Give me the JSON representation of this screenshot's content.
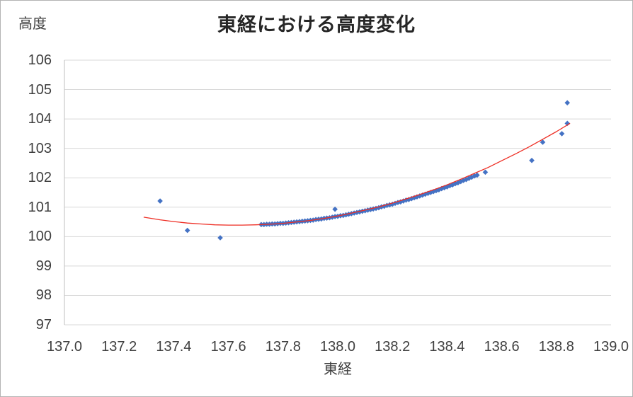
{
  "chart": {
    "title": "東経における高度変化",
    "y_axis_label": "高度",
    "x_axis_label": "東経"
  },
  "chart_data": {
    "type": "scatter",
    "title": "東経における高度変化",
    "xlabel": "東経",
    "ylabel": "高度",
    "xlim": [
      137.0,
      139.0
    ],
    "ylim": [
      97,
      106
    ],
    "x_ticks": [
      "137.0",
      "137.2",
      "137.4",
      "137.6",
      "137.8",
      "138.0",
      "138.2",
      "138.4",
      "138.6",
      "138.8",
      "139.0"
    ],
    "y_ticks": [
      "106",
      "105",
      "104",
      "103",
      "102",
      "101",
      "100",
      "99",
      "98",
      "97"
    ],
    "grid": "horizontal",
    "legend": "none",
    "colors": {
      "marker": "#4472C4",
      "trendline": "#EE2E24",
      "gridline": "#D9D9D9",
      "axis_line": "#BFBFBF",
      "axis_text": "#3F3F3F",
      "title_text": "#262626"
    },
    "series": [
      {
        "name": "高度",
        "type": "scatter",
        "marker": "diamond",
        "color": "#4472C4",
        "points": [
          [
            137.35,
            101.21
          ],
          [
            137.45,
            100.21
          ],
          [
            137.57,
            99.96
          ],
          [
            137.72,
            100.41
          ],
          [
            137.73,
            100.41
          ],
          [
            137.74,
            100.42
          ],
          [
            137.75,
            100.42
          ],
          [
            137.76,
            100.43
          ],
          [
            137.77,
            100.43
          ],
          [
            137.78,
            100.44
          ],
          [
            137.79,
            100.45
          ],
          [
            137.8,
            100.45
          ],
          [
            137.81,
            100.46
          ],
          [
            137.82,
            100.47
          ],
          [
            137.83,
            100.48
          ],
          [
            137.84,
            100.49
          ],
          [
            137.85,
            100.5
          ],
          [
            137.86,
            100.51
          ],
          [
            137.87,
            100.52
          ],
          [
            137.88,
            100.53
          ],
          [
            137.89,
            100.54
          ],
          [
            137.9,
            100.55
          ],
          [
            137.91,
            100.56
          ],
          [
            137.92,
            100.58
          ],
          [
            137.93,
            100.59
          ],
          [
            137.94,
            100.6
          ],
          [
            137.95,
            100.62
          ],
          [
            137.96,
            100.63
          ],
          [
            137.97,
            100.64
          ],
          [
            137.98,
            100.66
          ],
          [
            137.99,
            100.68
          ],
          [
            137.99,
            100.93
          ],
          [
            138.0,
            100.69
          ],
          [
            138.01,
            100.71
          ],
          [
            138.02,
            100.72
          ],
          [
            138.03,
            100.74
          ],
          [
            138.04,
            100.76
          ],
          [
            138.05,
            100.78
          ],
          [
            138.06,
            100.8
          ],
          [
            138.07,
            100.82
          ],
          [
            138.08,
            100.84
          ],
          [
            138.09,
            100.86
          ],
          [
            138.1,
            100.88
          ],
          [
            138.11,
            100.9
          ],
          [
            138.12,
            100.92
          ],
          [
            138.13,
            100.94
          ],
          [
            138.14,
            100.96
          ],
          [
            138.15,
            100.98
          ],
          [
            138.16,
            101.01
          ],
          [
            138.17,
            101.03
          ],
          [
            138.18,
            101.06
          ],
          [
            138.19,
            101.08
          ],
          [
            138.2,
            101.1
          ],
          [
            138.21,
            101.13
          ],
          [
            138.22,
            101.16
          ],
          [
            138.23,
            101.18
          ],
          [
            138.24,
            101.21
          ],
          [
            138.25,
            101.24
          ],
          [
            138.26,
            101.26
          ],
          [
            138.27,
            101.29
          ],
          [
            138.28,
            101.32
          ],
          [
            138.29,
            101.35
          ],
          [
            138.3,
            101.38
          ],
          [
            138.31,
            101.41
          ],
          [
            138.32,
            101.44
          ],
          [
            138.33,
            101.47
          ],
          [
            138.34,
            101.5
          ],
          [
            138.35,
            101.53
          ],
          [
            138.36,
            101.56
          ],
          [
            138.37,
            101.59
          ],
          [
            138.38,
            101.63
          ],
          [
            138.39,
            101.66
          ],
          [
            138.4,
            101.69
          ],
          [
            138.41,
            101.73
          ],
          [
            138.42,
            101.76
          ],
          [
            138.43,
            101.8
          ],
          [
            138.44,
            101.83
          ],
          [
            138.45,
            101.87
          ],
          [
            138.46,
            101.91
          ],
          [
            138.47,
            101.94
          ],
          [
            138.48,
            101.98
          ],
          [
            138.49,
            102.02
          ],
          [
            138.5,
            102.06
          ],
          [
            138.51,
            102.09
          ],
          [
            138.54,
            102.19
          ],
          [
            138.71,
            102.59
          ],
          [
            138.75,
            103.21
          ],
          [
            138.82,
            103.5
          ],
          [
            138.84,
            103.85
          ],
          [
            138.84,
            104.55
          ]
        ]
      },
      {
        "name": "trendline",
        "type": "line",
        "color": "#EE2E24",
        "points": [
          [
            137.29,
            100.66
          ],
          [
            137.35,
            100.57
          ],
          [
            137.4,
            100.51
          ],
          [
            137.45,
            100.46
          ],
          [
            137.5,
            100.43
          ],
          [
            137.55,
            100.4
          ],
          [
            137.6,
            100.39
          ],
          [
            137.65,
            100.39
          ],
          [
            137.7,
            100.4
          ],
          [
            137.75,
            100.42
          ],
          [
            137.8,
            100.45
          ],
          [
            137.85,
            100.5
          ],
          [
            137.9,
            100.55
          ],
          [
            137.95,
            100.62
          ],
          [
            138.0,
            100.7
          ],
          [
            138.05,
            100.8
          ],
          [
            138.1,
            100.9
          ],
          [
            138.15,
            101.01
          ],
          [
            138.2,
            101.14
          ],
          [
            138.25,
            101.28
          ],
          [
            138.3,
            101.43
          ],
          [
            138.35,
            101.59
          ],
          [
            138.4,
            101.76
          ],
          [
            138.45,
            101.95
          ],
          [
            138.5,
            102.15
          ],
          [
            138.55,
            102.35
          ],
          [
            138.6,
            102.58
          ],
          [
            138.65,
            102.81
          ],
          [
            138.7,
            103.05
          ],
          [
            138.75,
            103.31
          ],
          [
            138.8,
            103.57
          ],
          [
            138.85,
            103.85
          ]
        ]
      }
    ]
  }
}
